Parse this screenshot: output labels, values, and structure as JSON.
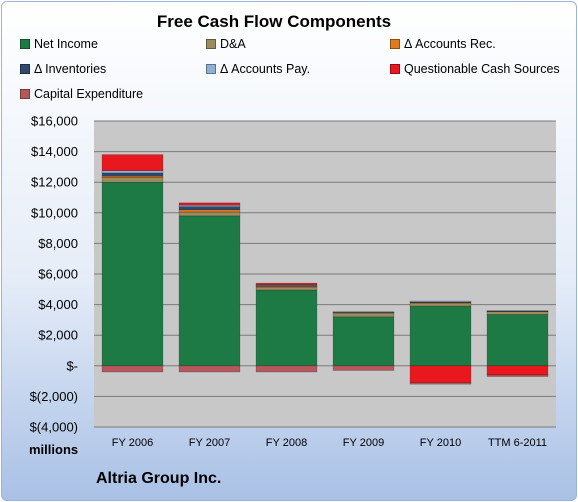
{
  "chart_data": {
    "type": "bar",
    "stacked": true,
    "title": "Free Cash Flow Components",
    "ylabel": "",
    "xlabel": "",
    "units_label": "millions",
    "categories": [
      "FY 2006",
      "FY 2007",
      "FY 2008",
      "FY 2009",
      "FY 2010",
      "TTM 6-2011"
    ],
    "ylim": [
      -4000,
      16000
    ],
    "ytick_values": [
      16000,
      14000,
      12000,
      10000,
      8000,
      6000,
      4000,
      2000,
      0,
      -2000,
      -4000
    ],
    "ytick_labels": [
      "$16,000",
      "$14,000",
      "$12,000",
      "$10,000",
      "$8,000",
      "$6,000",
      "$4,000",
      "$2,000",
      "$-",
      "$(2,000)",
      "$(4,000)"
    ],
    "grid": true,
    "legend_position": "top",
    "series": [
      {
        "name": "Net Income",
        "color": "#1e7a45",
        "values": [
          12000,
          9800,
          4950,
          3200,
          3900,
          3350
        ]
      },
      {
        "name": "D&A",
        "color": "#9c8b5e",
        "values": [
          300,
          250,
          200,
          250,
          200,
          200
        ]
      },
      {
        "name": "Δ Accounts Rec.",
        "color": "#e07a1f",
        "values": [
          100,
          150,
          50,
          30,
          40,
          20
        ]
      },
      {
        "name": "Δ Inventories",
        "color": "#2f4a6e",
        "values": [
          200,
          200,
          50,
          20,
          30,
          10
        ]
      },
      {
        "name": "Δ Accounts Pay.",
        "color": "#8fb0d6",
        "values": [
          150,
          100,
          50,
          40,
          60,
          30
        ]
      },
      {
        "name": "Questionable Cash Sources",
        "color": "#e8181e",
        "values": [
          1050,
          150,
          100,
          0,
          -1100,
          -600
        ]
      },
      {
        "name": "Capital Expenditure",
        "color": "#b5585c",
        "values": [
          -400,
          -400,
          -400,
          -300,
          -100,
          -100
        ]
      }
    ]
  },
  "footer": {
    "company": "Altria Group Inc."
  }
}
